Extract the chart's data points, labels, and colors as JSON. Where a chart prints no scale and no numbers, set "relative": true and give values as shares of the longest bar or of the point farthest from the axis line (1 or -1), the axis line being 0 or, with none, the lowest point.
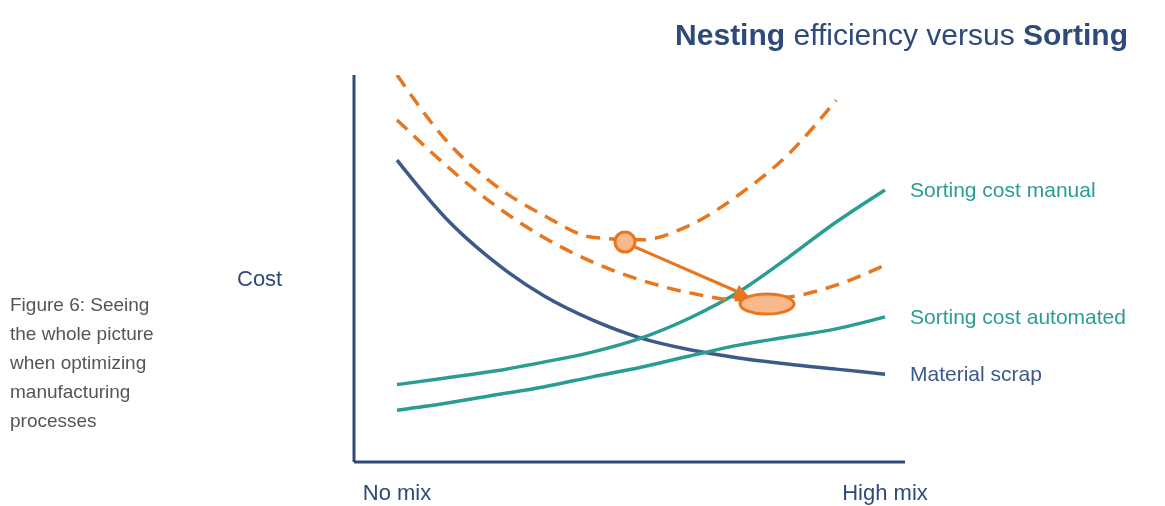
{
  "chart_data": {
    "type": "line",
    "title": "Nesting efficiency versus Sorting",
    "ylabel": "Cost",
    "relative": true,
    "grid": false,
    "legend": false,
    "marker": "none",
    "line_style": "solid",
    "categories": [
      "No mix",
      null,
      null,
      null,
      null,
      null,
      null,
      null,
      null,
      null,
      "High mix"
    ],
    "series": [
      {
        "name": "Material scrap",
        "color": "#3b5a8a",
        "values": [
          0.78,
          0.63,
          0.517,
          0.43,
          0.367,
          0.32,
          0.29,
          0.269,
          0.253,
          0.24,
          0.227
        ]
      },
      {
        "name": "Sorting cost manual",
        "color": "#2a9d92",
        "values": [
          0.2,
          0.217,
          0.235,
          0.258,
          0.284,
          0.32,
          0.372,
          0.439,
          0.527,
          0.62,
          0.703
        ]
      },
      {
        "name": "Sorting cost automated",
        "color": "#2a9d92",
        "values": [
          0.134,
          0.152,
          0.173,
          0.194,
          0.22,
          0.245,
          0.274,
          0.302,
          0.323,
          0.344,
          0.375
        ]
      },
      {
        "color": "#e8761e",
        "line_style": "dashed",
        "values": [
          1,
          0.832,
          0.716,
          0.638,
          0.581,
          0.574,
          0.612,
          0.69,
          0.793,
          0.935,
          null
        ]
      },
      {
        "color": "#e8761e",
        "line_style": "dashed",
        "values": [
          0.884,
          0.767,
          0.664,
          0.581,
          0.517,
          0.47,
          0.437,
          0.419,
          0.426,
          0.457,
          0.509
        ]
      }
    ],
    "annotations": [
      "Figure 6: Seeing the whole picture when optimizing manufacturing processes"
    ]
  }
}
